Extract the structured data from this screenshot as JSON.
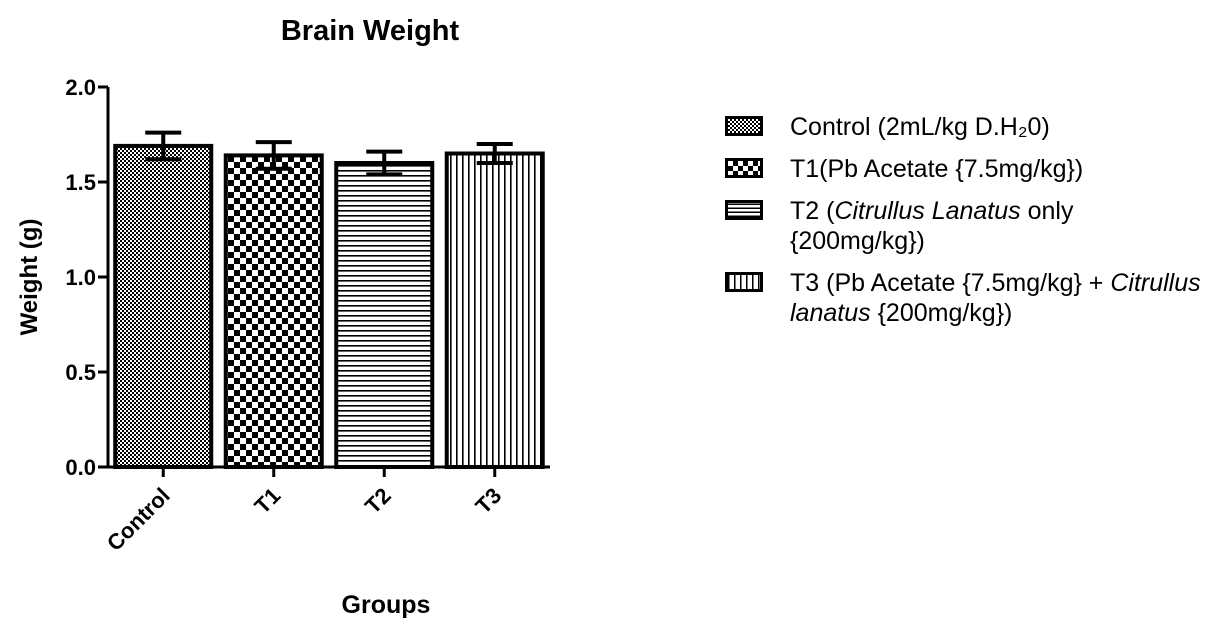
{
  "chart_data": {
    "type": "bar",
    "title": "Brain Weight",
    "xlabel": "Groups",
    "ylabel": "Weight (g)",
    "ylim": [
      0,
      2.0
    ],
    "yticks": [
      "0.0",
      "0.5",
      "1.0",
      "1.5",
      "2.0"
    ],
    "ytick_values": [
      0,
      0.5,
      1.0,
      1.5,
      2.0
    ],
    "categories": [
      "Control",
      "T1",
      "T2",
      "T3"
    ],
    "values": [
      1.69,
      1.64,
      1.6,
      1.65
    ],
    "errors": [
      0.07,
      0.07,
      0.06,
      0.05
    ],
    "patterns": [
      "fine-checker",
      "coarse-checker",
      "horizontal-lines",
      "vertical-lines"
    ],
    "legend_position": "right",
    "legend": [
      {
        "text": "Control (2mL/kg D.H₂0)"
      },
      {
        "text": "T1(Pb Acetate {7.5mg/kg})"
      },
      {
        "text_before": "T2 (",
        "text_italic": "Citrullus Lanatus",
        "text_after": "  only {200mg/kg})"
      },
      {
        "text_before": "T3 (Pb Acetate {7.5mg/kg} + ",
        "text_italic": "Citrullus lanatus",
        "text_after": " {200mg/kg})"
      }
    ],
    "colors": {
      "bar_fill": "#ffffff",
      "ink": "#000000"
    }
  }
}
